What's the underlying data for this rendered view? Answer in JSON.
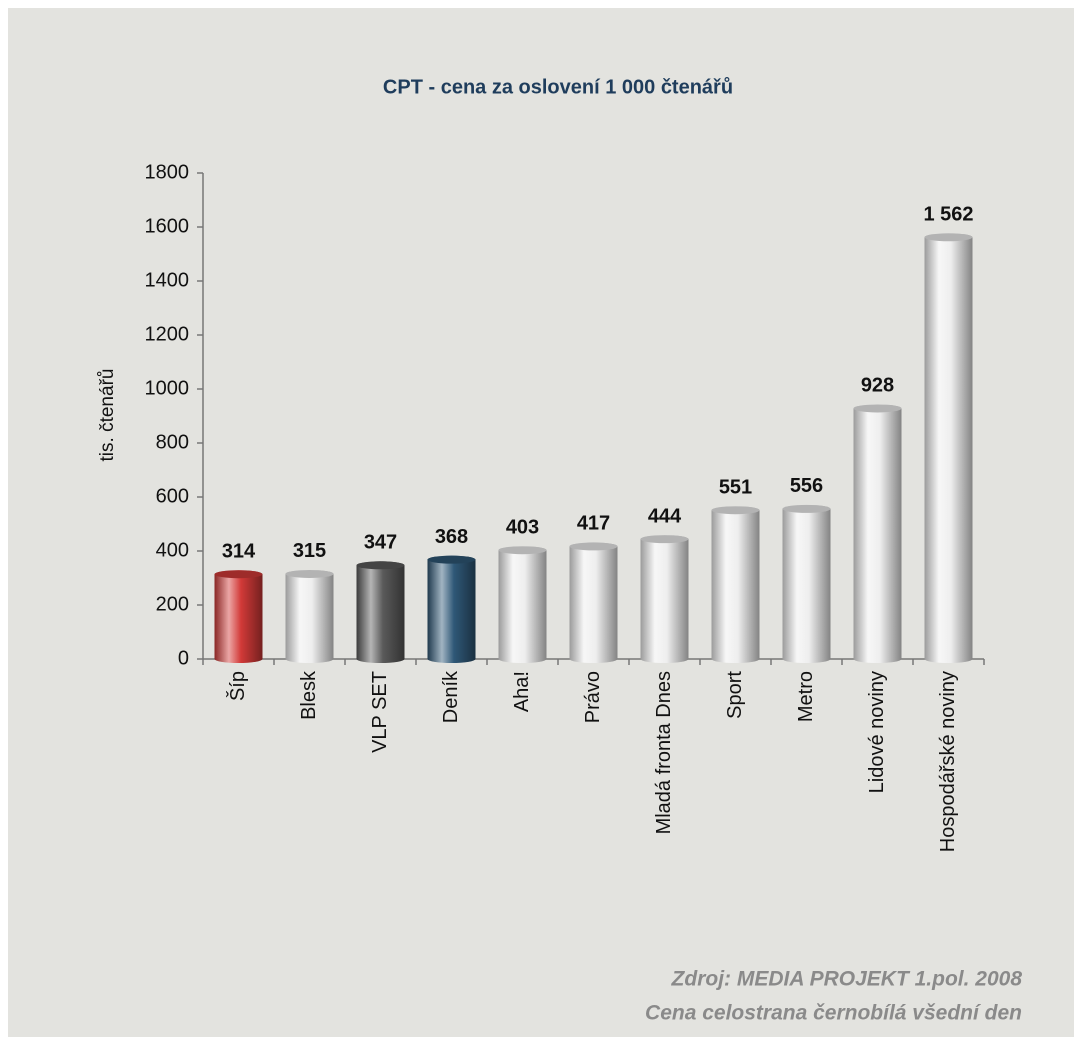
{
  "chart_data": {
    "type": "bar",
    "title": "CPT - cena za oslovení 1 000 čtenářů",
    "y_label": "tis. čtenářů",
    "categories": [
      "Šíp",
      "Blesk",
      "VLP SET",
      "Deník",
      "Aha!",
      "Právo",
      "Mladá fronta Dnes",
      "Sport",
      "Metro",
      "Lidové noviny",
      "Hospodářské noviny"
    ],
    "values": [
      314,
      315,
      347,
      368,
      403,
      417,
      444,
      551,
      556,
      928,
      1562
    ],
    "value_labels": [
      "314",
      "315",
      "347",
      "368",
      "403",
      "417",
      "444",
      "551",
      "556",
      "928",
      "1 562"
    ],
    "colors": [
      "#d23a38",
      "#eeeeee",
      "#5a5a5a",
      "#2f5877",
      "#eeeeee",
      "#eeeeee",
      "#eeeeee",
      "#eeeeee",
      "#eeeeee",
      "#eeeeee",
      "#eeeeee"
    ],
    "ylim": [
      0,
      1800
    ],
    "yticks": [
      0,
      200,
      400,
      600,
      800,
      1000,
      1200,
      1400,
      1600,
      1800
    ],
    "grid": false,
    "notes": [
      "Zdroj: MEDIA PROJEKT 1.pol. 2008",
      "Cena celostrana černobílá všední den"
    ]
  }
}
